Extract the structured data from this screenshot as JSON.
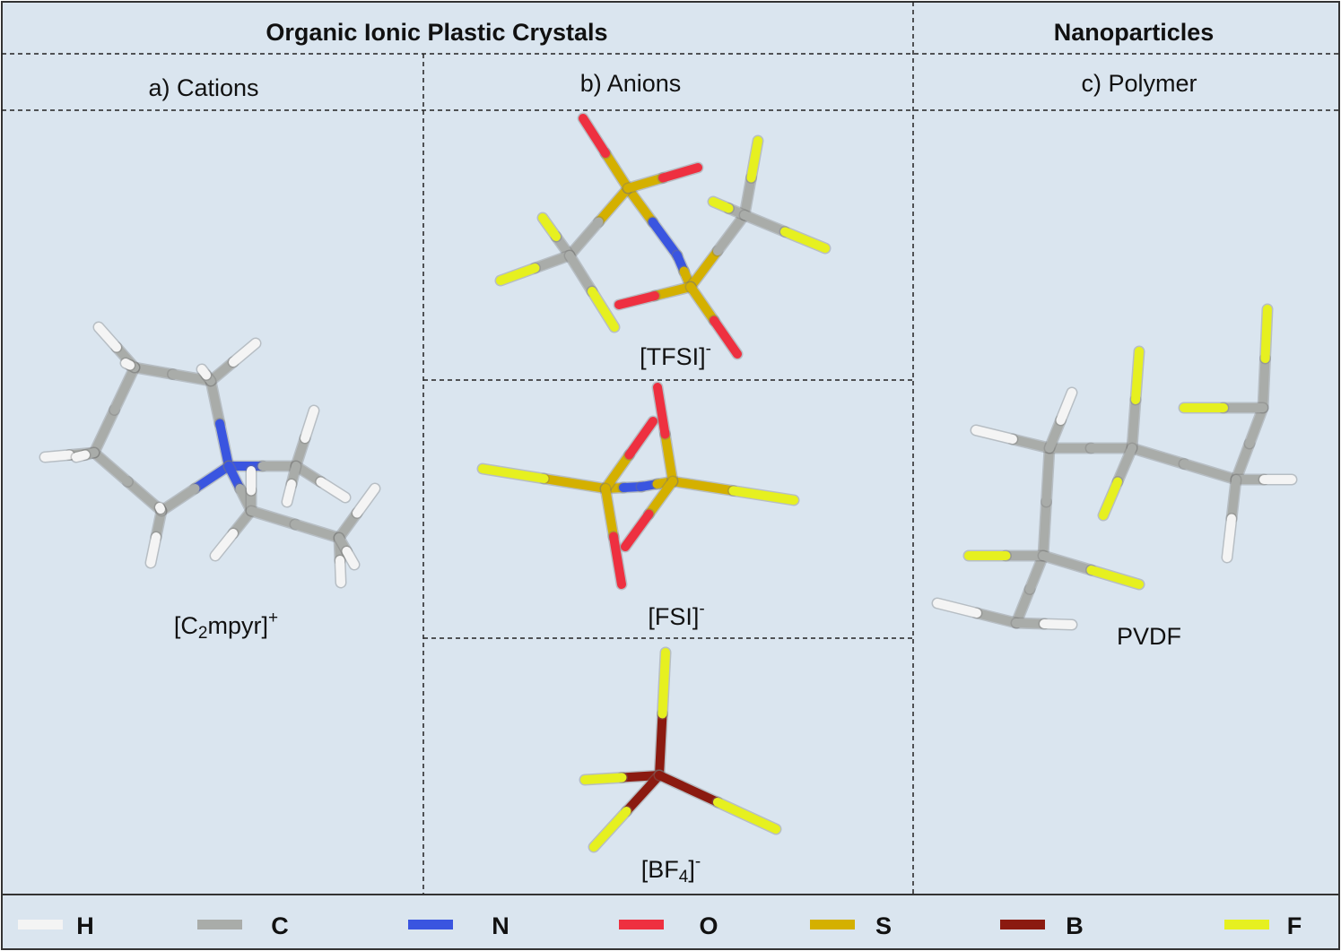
{
  "header": {
    "left": "Organic Ionic Plastic Crystals",
    "right": "Nanoparticles"
  },
  "panels": [
    {
      "title": "a) Cations",
      "molecules": [
        {
          "label": [
            "[C",
            "2",
            "mpyr]",
            "+"
          ]
        }
      ]
    },
    {
      "title": "b) Anions",
      "molecules": [
        {
          "label": [
            "[TFSI]",
            "-"
          ]
        },
        {
          "label": [
            "[FSI]",
            "-"
          ]
        },
        {
          "label": [
            "[BF",
            "4",
            "]",
            "-"
          ]
        }
      ]
    },
    {
      "title": "c) Polymer",
      "molecules": [
        {
          "label": [
            "PVDF"
          ]
        }
      ]
    }
  ],
  "legend": [
    {
      "label": "H",
      "color": "#f4f4f4"
    },
    {
      "label": "C",
      "color": "#a9aca9"
    },
    {
      "label": "N",
      "color": "#3a55e0"
    },
    {
      "label": "O",
      "color": "#ee3040"
    },
    {
      "label": "S",
      "color": "#d4b000"
    },
    {
      "label": "B",
      "color": "#8b1a10"
    },
    {
      "label": "F",
      "color": "#e6f020"
    }
  ]
}
